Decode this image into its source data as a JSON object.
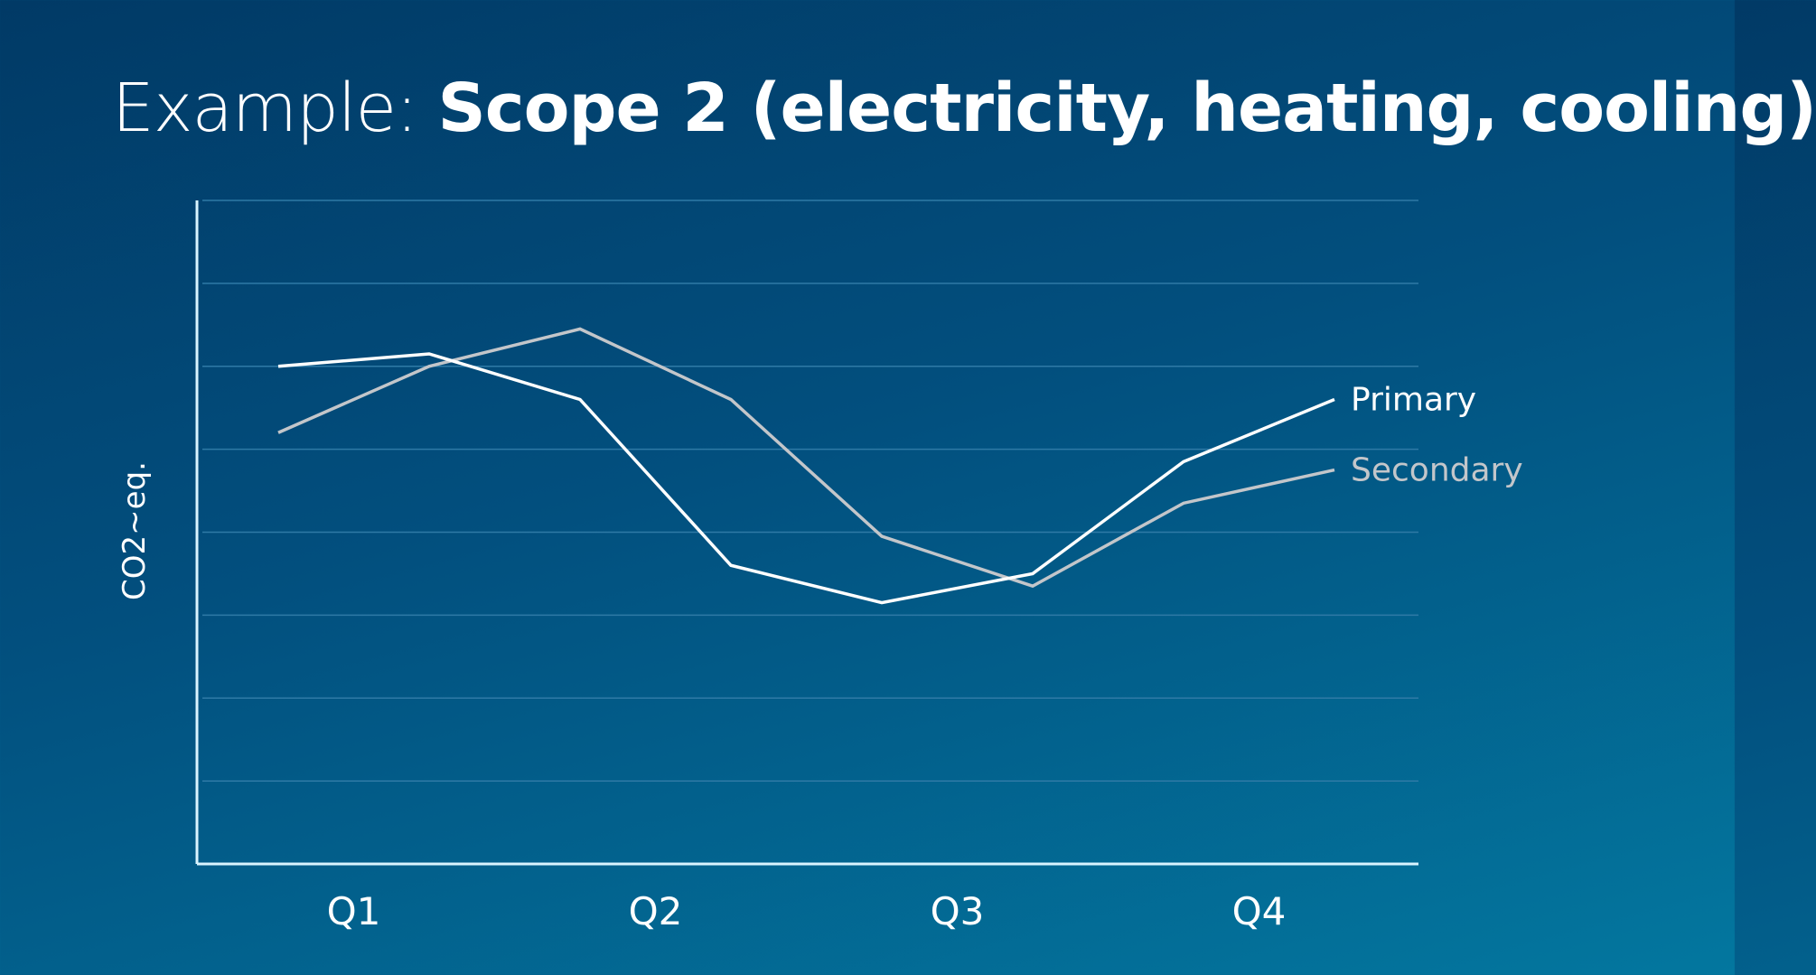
{
  "slide": {
    "title_prefix": "Example: ",
    "title_main": "Scope 2 (electricity, heating, cooling)"
  },
  "colors": {
    "background_top": "#013a66",
    "background_bottom": "#03779f",
    "primary": "#ffffff",
    "secondary": "#c3c6ca",
    "axis": "#d9f4ff",
    "grid": "#2f7aa6"
  },
  "chart_data": {
    "type": "line",
    "title": "Scope 2 (electricity, heating, cooling)",
    "xlabel": "",
    "ylabel": "CO2~eq.",
    "categories": [
      "Q1",
      "Q2",
      "Q3",
      "Q4"
    ],
    "x": [
      0,
      1,
      2,
      3,
      4,
      5,
      6,
      7
    ],
    "ylim": [
      0,
      8
    ],
    "grid": true,
    "series": [
      {
        "name": "Primary",
        "values": [
          6.0,
          6.15,
          5.6,
          3.6,
          3.15,
          3.5,
          4.85,
          5.6
        ]
      },
      {
        "name": "Secondary",
        "values": [
          5.2,
          6.0,
          6.45,
          5.6,
          3.95,
          3.35,
          4.35,
          4.75
        ]
      }
    ]
  }
}
